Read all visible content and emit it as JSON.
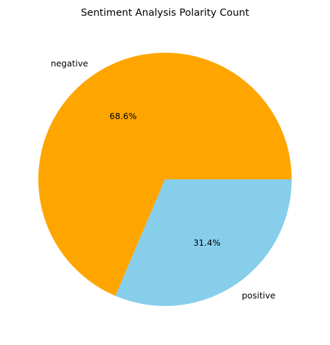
{
  "chart_data": {
    "type": "pie",
    "title": "Sentiment Analysis Polarity Count",
    "slices": [
      {
        "label": "negative",
        "value": 68.6,
        "pct_label": "68.6%",
        "color": "#FFA500"
      },
      {
        "label": "positive",
        "value": 31.4,
        "pct_label": "31.4%",
        "color": "#87CEEB"
      }
    ],
    "start_angle_deg": 0,
    "direction": "counterclockwise",
    "legend": "none"
  }
}
